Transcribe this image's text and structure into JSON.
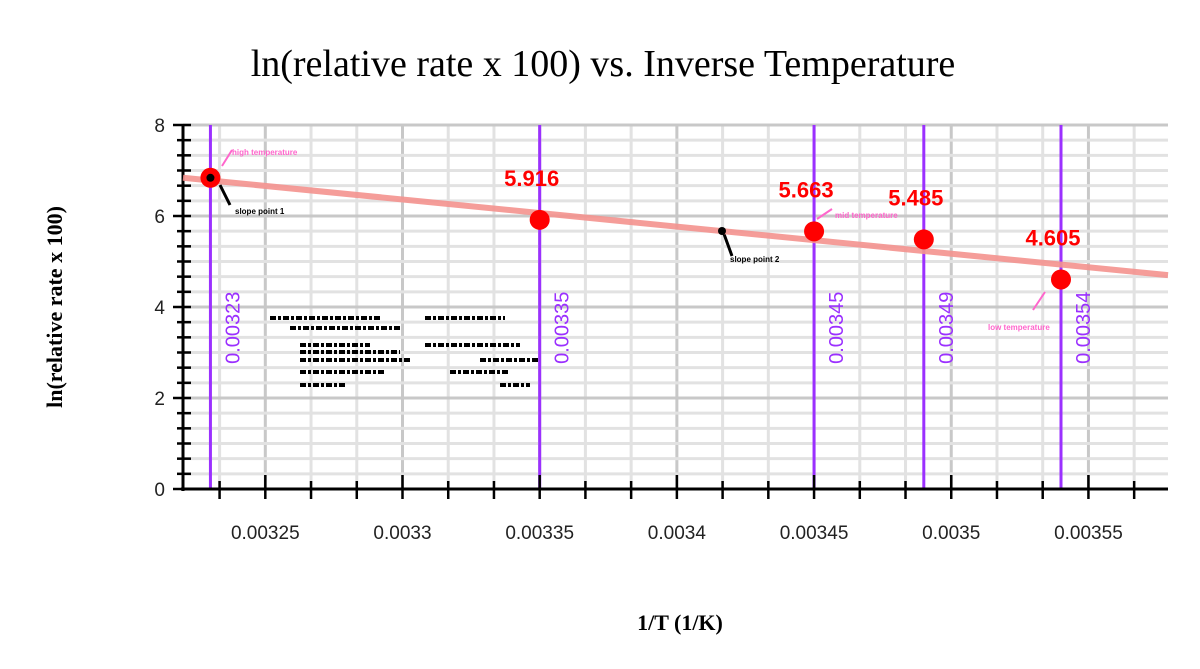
{
  "chart_data": {
    "type": "scatter",
    "title": "ln(relative rate x 100) vs. Inverse Temperature",
    "xlabel": "1/T (1/K)",
    "ylabel": "ln(relative rate x 100)",
    "xlim": [
      0.00322,
      0.003579
    ],
    "ylim": [
      0,
      8
    ],
    "x_ticks": [
      "0.00325",
      "0.0033",
      "0.00335",
      "0.0034",
      "0.00345",
      "0.0035",
      "0.00355"
    ],
    "y_ticks": [
      "0",
      "2",
      "4",
      "6",
      "8"
    ],
    "grid": true,
    "points": [
      {
        "x": 0.00323,
        "y": 6.84,
        "label": ""
      },
      {
        "x": 0.00335,
        "y": 5.916,
        "label": "5.916"
      },
      {
        "x": 0.00345,
        "y": 5.663,
        "label": "5.663"
      },
      {
        "x": 0.00349,
        "y": 5.485,
        "label": "5.485"
      },
      {
        "x": 0.00354,
        "y": 4.605,
        "label": "4.605"
      }
    ],
    "trendline": {
      "x": [
        0.00322,
        0.003579
      ],
      "y": [
        6.84,
        4.7
      ],
      "color": "#f4938f"
    },
    "vertical_markers": [
      {
        "x": 0.00323,
        "label": "0.00323"
      },
      {
        "x": 0.00335,
        "label": "0.00335"
      },
      {
        "x": 0.00345,
        "label": "0.00345"
      },
      {
        "x": 0.00349,
        "label": "0.00349"
      },
      {
        "x": 0.00354,
        "label": "0.00354"
      }
    ],
    "colors": {
      "points": "#ff0000",
      "markers": "#9b30ff",
      "trendline": "#f4938f",
      "annotations": "#ff66cc"
    },
    "annotations": {
      "high": "high temperature",
      "slope1": "slope point 1",
      "slope2": "slope point 2",
      "mid": "mid temperature",
      "low": "low temperature"
    }
  }
}
